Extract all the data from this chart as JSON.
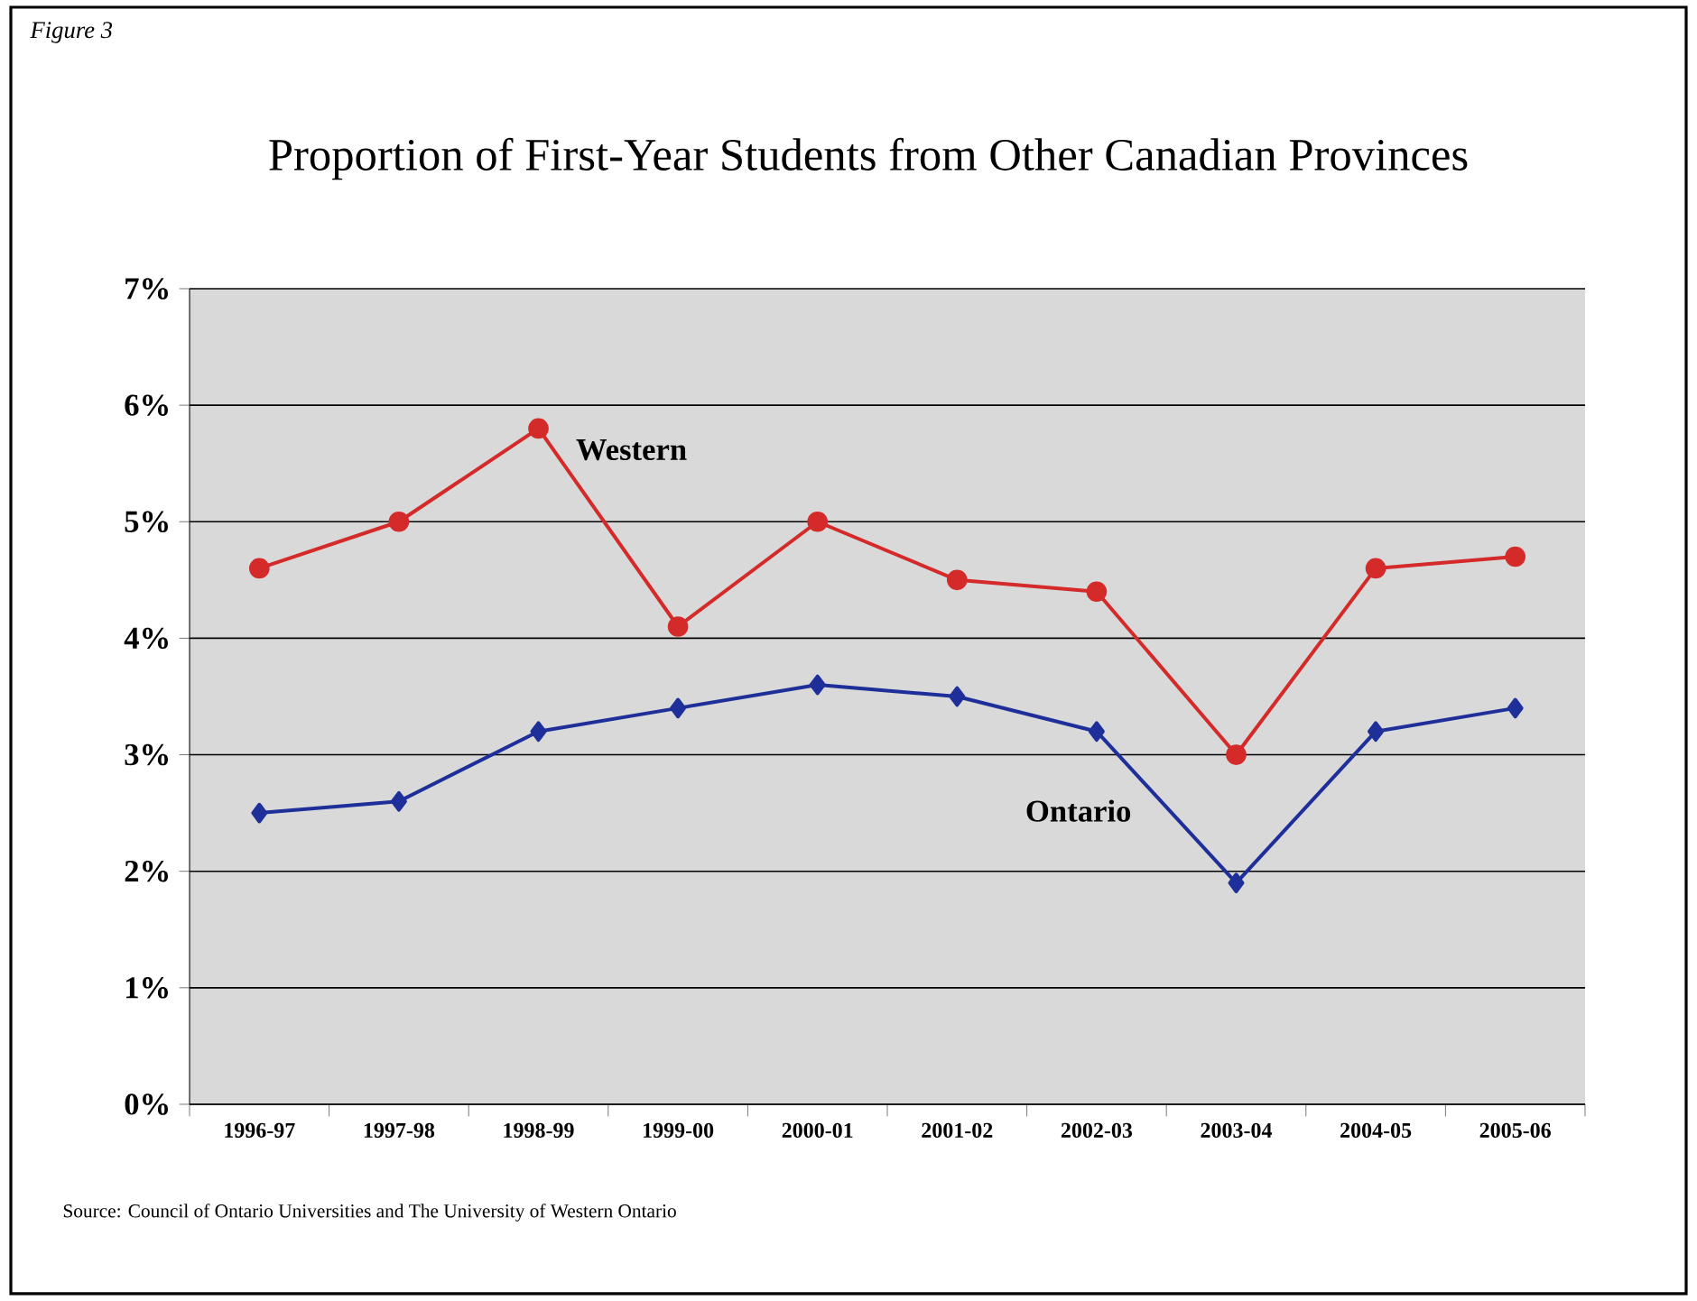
{
  "chart_data": {
    "type": "line",
    "title": "Proportion of First-Year Students from Other Canadian Provinces",
    "annotations": [
      "Figure 3",
      "Source:  Council of Ontario Universities and The University of Western Ontario"
    ],
    "categories": [
      "1996-97",
      "1997-98",
      "1998-99",
      "1999-00",
      "2000-01",
      "2001-02",
      "2002-03",
      "2003-04",
      "2004-05",
      "2005-06"
    ],
    "series": [
      {
        "name": "Western",
        "color": "#d42a2a",
        "marker": "circle",
        "values": [
          4.6,
          5.0,
          5.8,
          4.1,
          5.0,
          4.5,
          4.4,
          3.0,
          4.6,
          4.7
        ]
      },
      {
        "name": "Ontario",
        "color": "#1f2f9a",
        "marker": "diamond",
        "values": [
          2.5,
          2.6,
          3.2,
          3.4,
          3.6,
          3.5,
          3.2,
          1.9,
          3.2,
          3.4
        ]
      }
    ],
    "ylim": [
      0,
      7
    ],
    "yticks": [
      {
        "value": 0,
        "label": "0%"
      },
      {
        "value": 1,
        "label": "1%"
      },
      {
        "value": 2,
        "label": "2%"
      },
      {
        "value": 3,
        "label": "3%"
      },
      {
        "value": 4,
        "label": "4%"
      },
      {
        "value": 5,
        "label": "5%"
      },
      {
        "value": 6,
        "label": "6%"
      },
      {
        "value": 7,
        "label": "7%"
      }
    ],
    "grid": "y",
    "legend": false,
    "line_style": "solid"
  }
}
